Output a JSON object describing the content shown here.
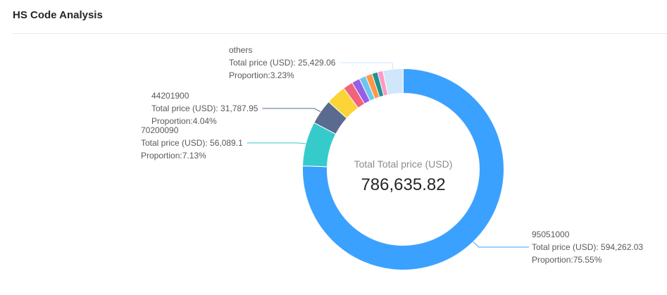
{
  "chart_data": {
    "type": "pie",
    "donut": true,
    "title": "HS Code Analysis",
    "center_label": "Total Total price (USD)",
    "center_value": "786,635.82",
    "price_label": "Total price (USD): ",
    "proportion_label": "Proportion:",
    "slices": [
      {
        "label": "95051000",
        "value": 594262.03,
        "value_text": "594,262.03",
        "proportion": "75.55%",
        "color": "#3ba1ff"
      },
      {
        "label": "70200090",
        "value": 56089.1,
        "value_text": "56,089.1",
        "proportion": "7.13%",
        "color": "#36cbcb"
      },
      {
        "label": "44201900",
        "value": 31787.95,
        "value_text": "31,787.95",
        "proportion": "4.04%",
        "color": "#5b6b8f"
      },
      {
        "value": 25200,
        "color": "#fbd437"
      },
      {
        "value": 12600,
        "color": "#f2637b"
      },
      {
        "value": 10200,
        "color": "#975fe4"
      },
      {
        "value": 8650,
        "color": "#6cc7f0"
      },
      {
        "value": 8250,
        "color": "#ff9845"
      },
      {
        "value": 7250,
        "color": "#1e9493"
      },
      {
        "value": 6917.68,
        "color": "#ff99c3"
      },
      {
        "label": "others",
        "value": 25429.06,
        "value_text": "25,429.06",
        "proportion": "3.23%",
        "color": "#cfe6fb"
      }
    ]
  }
}
